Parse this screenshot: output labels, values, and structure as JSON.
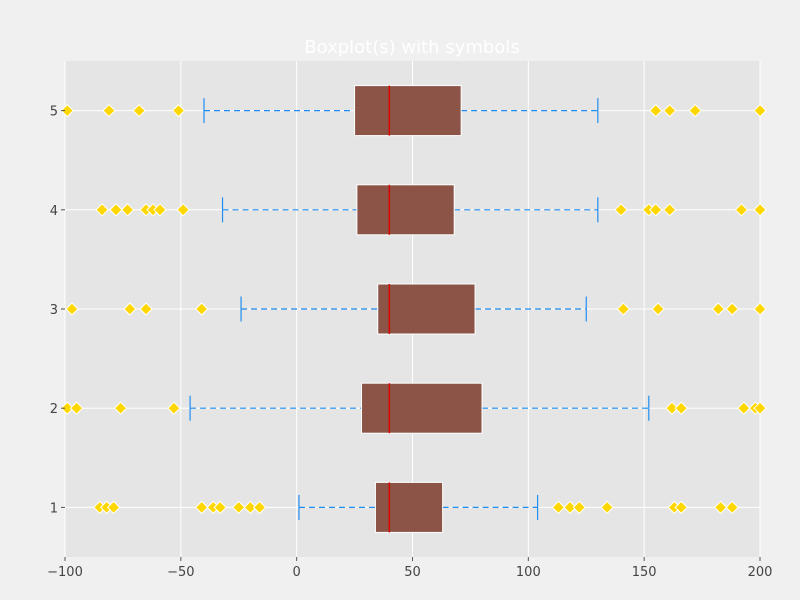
{
  "chart_data": {
    "type": "boxplot",
    "orientation": "horizontal",
    "title": "Boxplot(s) with symbols",
    "xlabel": "",
    "ylabel": "",
    "xlim": [
      -100,
      200
    ],
    "ylim": [
      0.5,
      5.5
    ],
    "x_ticks": [
      "−100",
      "−50",
      "0",
      "50",
      "100",
      "150",
      "200"
    ],
    "x_tick_values": [
      -100,
      -50,
      0,
      50,
      100,
      150,
      200
    ],
    "y_ticks": [
      "1",
      "2",
      "3",
      "4",
      "5"
    ],
    "y_tick_values": [
      1,
      2,
      3,
      4,
      5
    ],
    "grid": true,
    "colors": {
      "background": "#f0f0f0",
      "plot_area": "#e5e5e5",
      "grid": "#ffffff",
      "box_fill": "#8b5446",
      "median": "#dd0000",
      "whisker": "#1f8ef1",
      "flier_fill": "#ffd700",
      "flier_edge": "#ffffff",
      "title": "#ffffff"
    },
    "boxes": [
      {
        "position": 1,
        "whislo": 1,
        "q1": 34,
        "med": 40,
        "q3": 63,
        "whishi": 104,
        "fliers": [
          -85,
          -82,
          -79,
          -41,
          -36,
          -33,
          -25,
          -20,
          -16,
          113,
          118,
          122,
          134,
          163,
          166,
          183,
          188
        ]
      },
      {
        "position": 2,
        "whislo": -46,
        "q1": 28,
        "med": 40,
        "q3": 80,
        "whishi": 152,
        "fliers": [
          -99,
          -95,
          -76,
          -53,
          162,
          166,
          193,
          198,
          200
        ]
      },
      {
        "position": 3,
        "whislo": -24,
        "q1": 35,
        "med": 40,
        "q3": 77,
        "whishi": 125,
        "fliers": [
          -97,
          -72,
          -65,
          -41,
          141,
          156,
          182,
          188,
          200
        ]
      },
      {
        "position": 4,
        "whislo": -32,
        "q1": 26,
        "med": 40,
        "q3": 68,
        "whishi": 130,
        "fliers": [
          -84,
          -78,
          -73,
          -65,
          -62,
          -59,
          -49,
          140,
          152,
          155,
          161,
          192,
          200
        ]
      },
      {
        "position": 5,
        "whislo": -40,
        "q1": 25,
        "med": 40,
        "q3": 71,
        "whishi": 130,
        "fliers": [
          -99,
          -81,
          -68,
          -51,
          155,
          161,
          172,
          200
        ]
      }
    ]
  }
}
